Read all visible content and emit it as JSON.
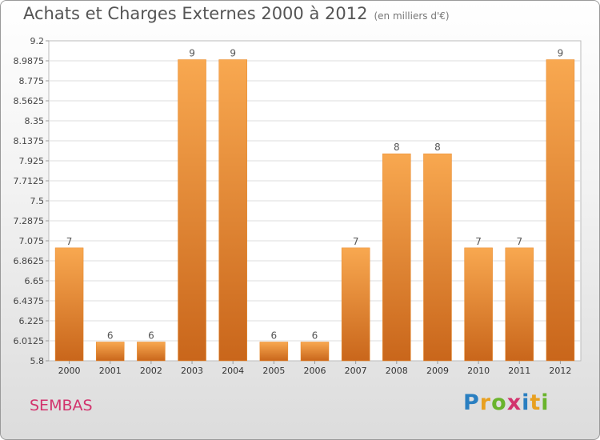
{
  "title": "Achats et Charges Externes 2000 à 2012",
  "unit_note": "(en milliers d'€)",
  "commune": "SEMBAS",
  "logo": {
    "letters": [
      "P",
      "r",
      "o",
      "x",
      "i",
      "t",
      "i"
    ],
    "colors": [
      "#2a7fc1",
      "#e8a020",
      "#6ab42d",
      "#d2336d",
      "#2a7fc1",
      "#e8a020",
      "#6ab42d"
    ]
  },
  "chart_data": {
    "type": "bar",
    "title": "Achats et Charges Externes 2000 à 2012",
    "subtitle": "(en milliers d'€)",
    "xlabel": "",
    "ylabel": "",
    "categories": [
      "2000",
      "2001",
      "2002",
      "2003",
      "2004",
      "2005",
      "2006",
      "2007",
      "2008",
      "2009",
      "2010",
      "2011",
      "2012"
    ],
    "values": [
      7,
      6,
      6,
      9,
      9,
      6,
      6,
      7,
      8,
      8,
      7,
      7,
      9
    ],
    "value_labels": [
      "7",
      "6",
      "6",
      "9",
      "9",
      "6",
      "6",
      "7",
      "8",
      "8",
      "7",
      "7",
      "9"
    ],
    "ylim": [
      5.8,
      9.2
    ],
    "yticks": [
      5.8,
      6.0125,
      6.225,
      6.4375,
      6.65,
      6.8625,
      7.075,
      7.2875,
      7.5,
      7.7125,
      7.925,
      8.1375,
      8.35,
      8.5625,
      8.775,
      8.9875,
      9.2
    ],
    "ytick_labels": [
      "5.8",
      "6.0125",
      "6.225",
      "6.4375",
      "6.65",
      "6.8625",
      "7.075",
      "7.2875",
      "7.5",
      "7.7125",
      "7.925",
      "8.1375",
      "8.35",
      "8.5625",
      "8.775",
      "8.9875",
      "9.2"
    ],
    "grid": true,
    "bar_color": "#f0962e"
  }
}
